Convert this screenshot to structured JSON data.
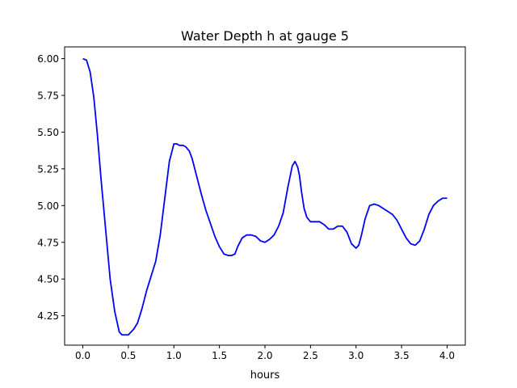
{
  "chart_data": {
    "type": "line",
    "title": "Water Depth h at gauge 5",
    "xlabel": "hours",
    "ylabel": "",
    "xlim": [
      -0.2,
      4.2
    ],
    "ylim": [
      4.05,
      6.08
    ],
    "xticks": [
      0.0,
      0.5,
      1.0,
      1.5,
      2.0,
      2.5,
      3.0,
      3.5,
      4.0
    ],
    "xtick_labels": [
      "0.0",
      "0.5",
      "1.0",
      "1.5",
      "2.0",
      "2.5",
      "3.0",
      "3.5",
      "4.0"
    ],
    "yticks": [
      4.25,
      4.5,
      4.75,
      5.0,
      5.25,
      5.5,
      5.75,
      6.0
    ],
    "ytick_labels": [
      "4.25",
      "4.50",
      "4.75",
      "5.00",
      "5.25",
      "5.50",
      "5.75",
      "6.00"
    ],
    "grid": false,
    "series": [
      {
        "color": "#0000ff",
        "x": [
          0.0,
          0.04,
          0.08,
          0.12,
          0.16,
          0.2,
          0.25,
          0.3,
          0.35,
          0.4,
          0.43,
          0.46,
          0.5,
          0.53,
          0.56,
          0.6,
          0.65,
          0.7,
          0.75,
          0.8,
          0.85,
          0.9,
          0.95,
          1.0,
          1.03,
          1.06,
          1.1,
          1.13,
          1.17,
          1.2,
          1.25,
          1.3,
          1.35,
          1.4,
          1.45,
          1.5,
          1.55,
          1.6,
          1.63,
          1.67,
          1.7,
          1.75,
          1.8,
          1.85,
          1.9,
          1.95,
          2.0,
          2.05,
          2.1,
          2.15,
          2.2,
          2.25,
          2.3,
          2.33,
          2.36,
          2.38,
          2.4,
          2.43,
          2.46,
          2.5,
          2.53,
          2.56,
          2.6,
          2.65,
          2.7,
          2.75,
          2.8,
          2.85,
          2.9,
          2.95,
          3.0,
          3.03,
          3.06,
          3.1,
          3.15,
          3.2,
          3.25,
          3.3,
          3.35,
          3.4,
          3.45,
          3.5,
          3.55,
          3.6,
          3.65,
          3.7,
          3.75,
          3.8,
          3.85,
          3.9,
          3.95,
          4.0
        ],
        "y": [
          6.0,
          5.99,
          5.91,
          5.74,
          5.48,
          5.18,
          4.84,
          4.5,
          4.28,
          4.14,
          4.12,
          4.12,
          4.12,
          4.14,
          4.16,
          4.2,
          4.3,
          4.42,
          4.52,
          4.62,
          4.8,
          5.05,
          5.3,
          5.42,
          5.42,
          5.41,
          5.41,
          5.4,
          5.37,
          5.32,
          5.2,
          5.08,
          4.97,
          4.88,
          4.79,
          4.72,
          4.67,
          4.66,
          4.66,
          4.67,
          4.72,
          4.78,
          4.8,
          4.8,
          4.79,
          4.76,
          4.75,
          4.77,
          4.8,
          4.86,
          4.95,
          5.12,
          5.27,
          5.3,
          5.26,
          5.2,
          5.1,
          4.98,
          4.92,
          4.89,
          4.89,
          4.89,
          4.89,
          4.87,
          4.84,
          4.84,
          4.86,
          4.86,
          4.82,
          4.74,
          4.71,
          4.73,
          4.8,
          4.91,
          5.0,
          5.01,
          5.0,
          4.98,
          4.96,
          4.94,
          4.9,
          4.84,
          4.78,
          4.74,
          4.73,
          4.76,
          4.84,
          4.94,
          5.0,
          5.03,
          5.05,
          5.05
        ]
      }
    ]
  }
}
